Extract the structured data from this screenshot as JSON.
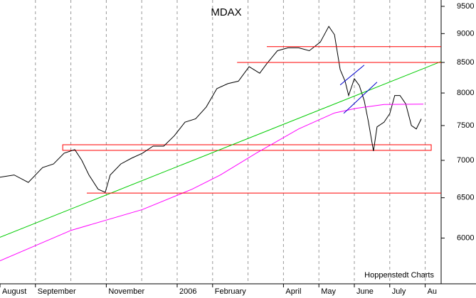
{
  "chart_data": {
    "type": "line",
    "title": "MDAX",
    "annotation": "Hoppenstedt Charts",
    "log_y": true,
    "xlim": [
      0,
      12.45
    ],
    "ylim": [
      5480,
      9620
    ],
    "yticks": [
      6000,
      6500,
      7000,
      7500,
      8000,
      8500,
      9000,
      9500
    ],
    "xticks": [
      {
        "value": 0,
        "label": "August"
      },
      {
        "value": 1,
        "label": "September"
      },
      {
        "value": 3,
        "label": "November"
      },
      {
        "value": 5,
        "label": "2006"
      },
      {
        "value": 6,
        "label": "February"
      },
      {
        "value": 8,
        "label": "April"
      },
      {
        "value": 9,
        "label": "May"
      },
      {
        "value": 10,
        "label": "June"
      },
      {
        "value": 11,
        "label": "July"
      },
      {
        "value": 12,
        "label": "Au"
      }
    ],
    "xgrid": [
      1,
      2,
      3,
      4,
      5,
      6,
      7,
      8,
      9,
      10,
      11,
      12
    ],
    "series": [
      {
        "color": "#000000",
        "x": [
          0,
          0.4,
          0.8,
          1.2,
          1.51,
          1.81,
          2.11,
          2.31,
          2.51,
          2.77,
          2.97,
          3.11,
          3.41,
          3.71,
          4.02,
          4.32,
          4.62,
          4.92,
          5.22,
          5.52,
          5.82,
          6.12,
          6.43,
          6.73,
          7.03,
          7.33,
          7.53,
          7.83,
          8.13,
          8.43,
          8.73,
          9.04,
          9.28,
          9.44,
          9.6,
          9.74,
          9.84,
          10,
          10.14,
          10.28,
          10.4,
          10.54,
          10.64,
          10.84,
          11,
          11.14,
          11.29,
          11.45,
          11.61,
          11.75,
          11.89
        ],
        "values": [
          6770,
          6800,
          6700,
          6900,
          6950,
          7100,
          7150,
          7000,
          6800,
          6610,
          6570,
          6800,
          6950,
          7030,
          7100,
          7200,
          7200,
          7350,
          7550,
          7600,
          7780,
          8070,
          8150,
          8190,
          8430,
          8320,
          8480,
          8700,
          8750,
          8750,
          8700,
          8850,
          9130,
          8980,
          8380,
          8190,
          7960,
          8230,
          8120,
          7880,
          7550,
          7130,
          7480,
          7550,
          7680,
          7960,
          7960,
          7830,
          7500,
          7450,
          7600
        ]
      },
      {
        "color": "#ff00ff",
        "x": [
          0,
          2.01,
          4.02,
          5.42,
          6.22,
          7.23,
          8.43,
          9.44,
          10.04,
          10.84,
          11.95
        ],
        "values": [
          5736,
          6093,
          6350,
          6610,
          6800,
          7100,
          7450,
          7690,
          7760,
          7820,
          7825
        ]
      },
      {
        "color": "#00cc00",
        "x": [
          0,
          12.45
        ],
        "values": [
          6010,
          8515
        ]
      },
      {
        "color": "#ff0000",
        "x": [
          7.53,
          12.45
        ],
        "values": [
          8770,
          8770
        ]
      },
      {
        "color": "#ff0000",
        "x": [
          6.69,
          12.45
        ],
        "values": [
          8500,
          8500
        ]
      },
      {
        "color": "#ff0000",
        "x": [
          2.45,
          12.45
        ],
        "values": [
          6560,
          6560
        ]
      },
      {
        "color": "#0000cc",
        "x": [
          9.6,
          10.28
        ],
        "values": [
          8128,
          8454
        ]
      },
      {
        "color": "#0000cc",
        "x": [
          9.7,
          10.64
        ],
        "values": [
          7684,
          8174
        ]
      }
    ],
    "box": {
      "color": "#ff0000",
      "x": [
        1.77,
        12.17
      ],
      "y": [
        7140,
        7220
      ]
    }
  }
}
